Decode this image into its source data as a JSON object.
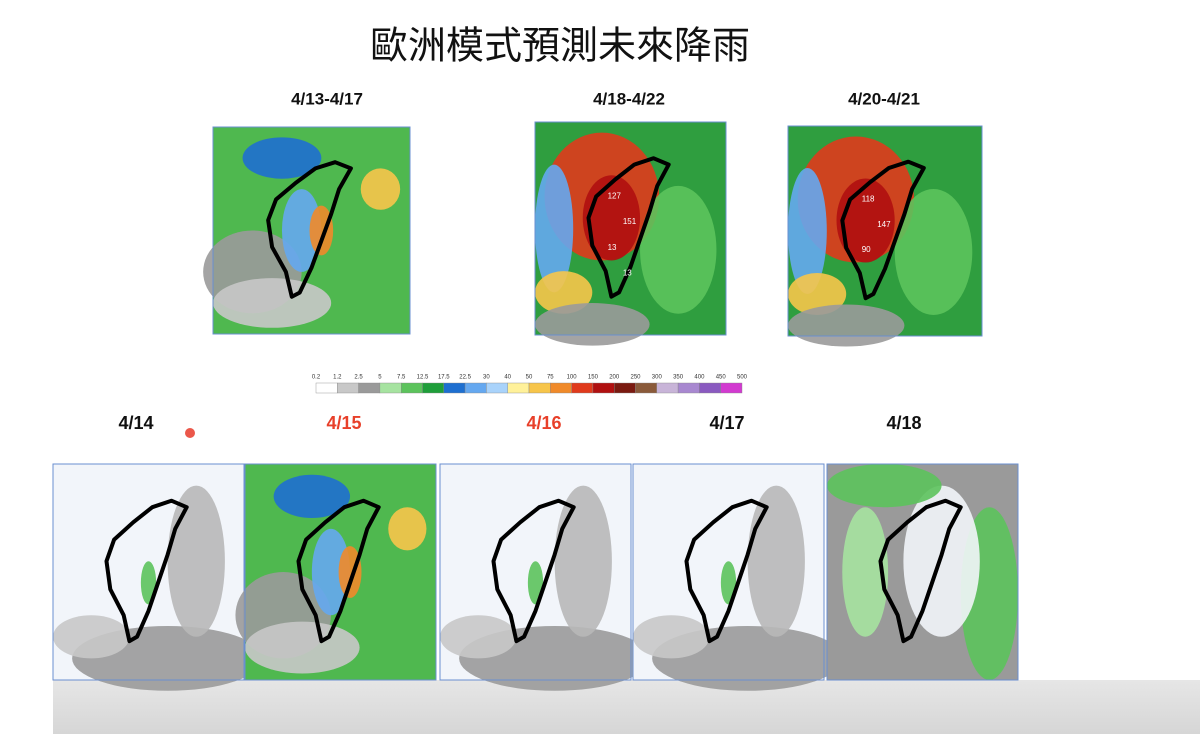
{
  "title": "歐洲模式預測未來降雨",
  "top_maps": [
    {
      "label": "4/13-4/17",
      "numbers": []
    },
    {
      "label": "4/18-4/22",
      "numbers": [
        "127",
        "151",
        "13",
        "13"
      ]
    },
    {
      "label": "4/20-4/21",
      "numbers": [
        "118",
        "147",
        "90"
      ]
    }
  ],
  "colorbar": {
    "ticks": [
      "0.2",
      "1.2",
      "2.5",
      "5",
      "7.5",
      "12.5",
      "17.5",
      "22.5",
      "30",
      "40",
      "50",
      "75",
      "100",
      "150",
      "200",
      "250",
      "300",
      "350",
      "400",
      "450",
      "500"
    ],
    "colors": [
      "#ffffff",
      "#c8c8c8",
      "#9a9a9a",
      "#a6e3a0",
      "#5cc35c",
      "#1f9e3a",
      "#1e6fd0",
      "#65a8f0",
      "#a9d3fb",
      "#fff19a",
      "#f7c54a",
      "#f08a2a",
      "#e03a1c",
      "#b01010",
      "#7a1a10",
      "#8a5a3a",
      "#c8b4d8",
      "#a888d0",
      "#8a5ac0",
      "#d23ad0"
    ]
  },
  "bottom_maps": [
    {
      "label": "4/14",
      "color": "#111111"
    },
    {
      "label": "4/15",
      "color": "#e8402a"
    },
    {
      "label": "4/16",
      "color": "#e8402a"
    },
    {
      "label": "4/17",
      "color": "#111111"
    },
    {
      "label": "4/18",
      "color": "#111111"
    }
  ]
}
